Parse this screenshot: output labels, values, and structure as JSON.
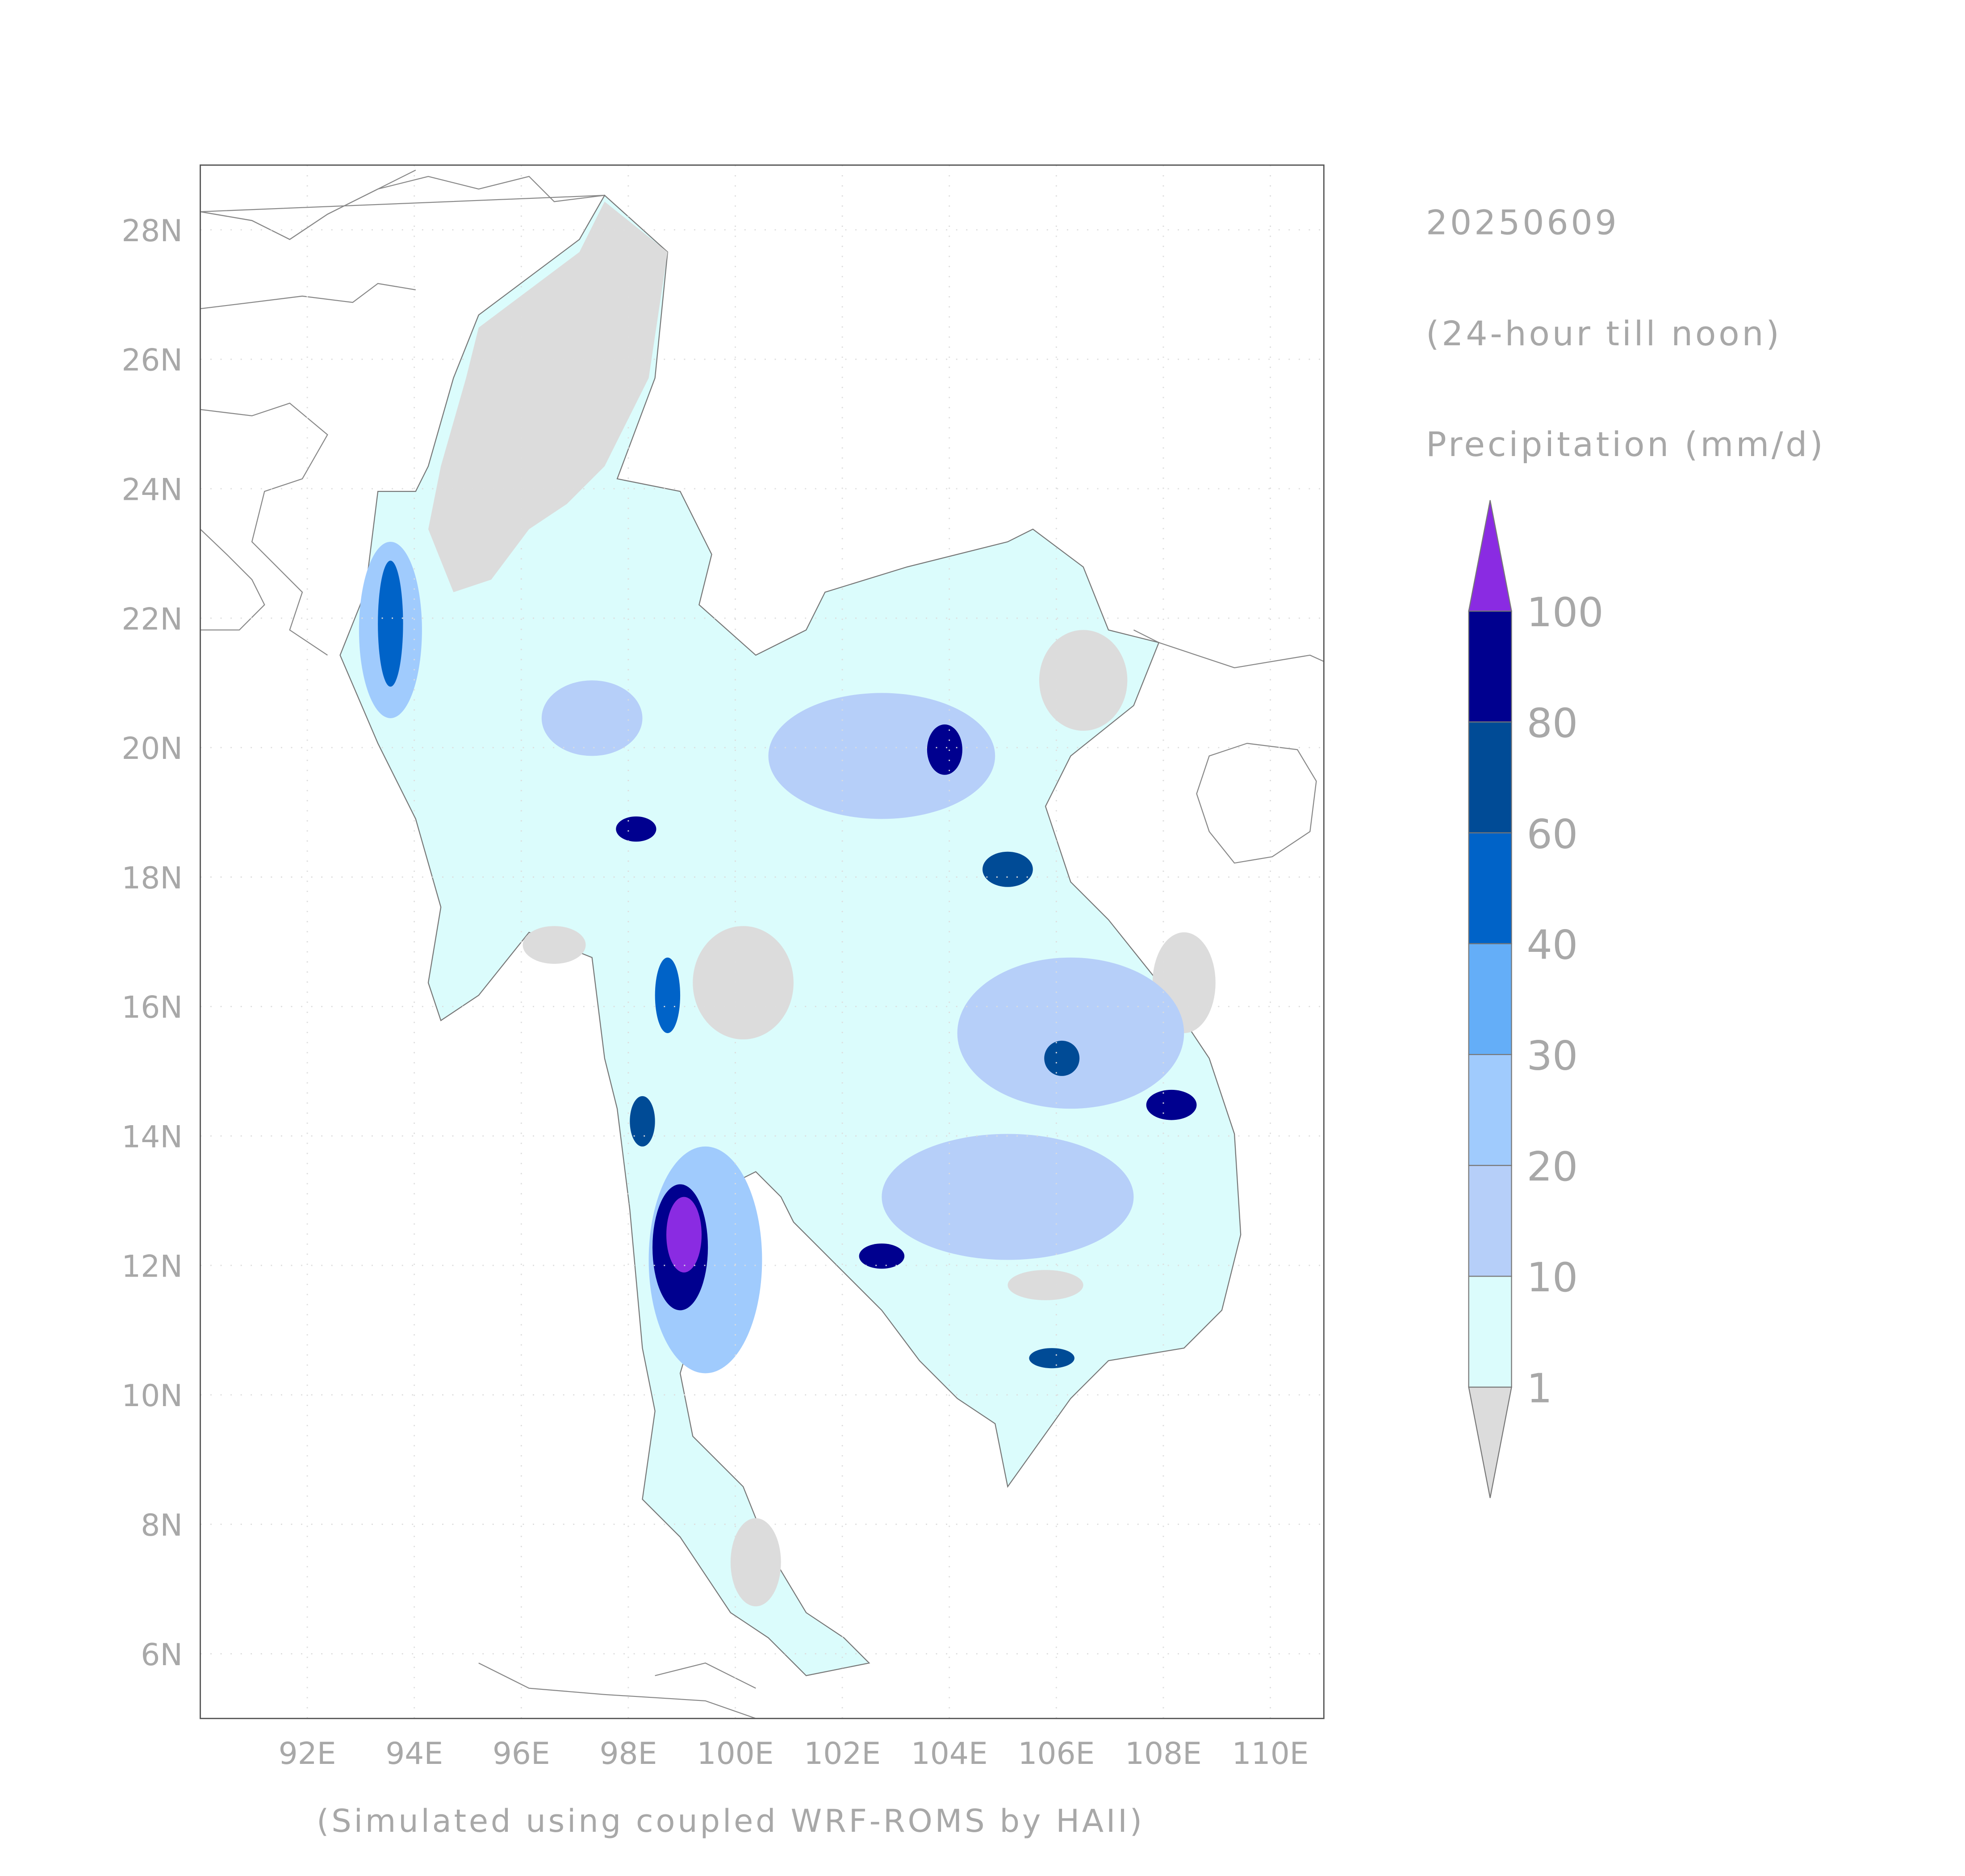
{
  "chart_data": {
    "type": "contour",
    "title": "20250609",
    "subtitle": "(24-hour till noon)",
    "colorbar_label": "Precipitation (mm/d)",
    "caption": "(Simulated using coupled WRF-ROMS by HAII)",
    "xlim": [
      90,
      111
    ],
    "ylim": [
      5,
      29
    ],
    "xticks": [
      {
        "value": 92,
        "label": "92E"
      },
      {
        "value": 94,
        "label": "94E"
      },
      {
        "value": 96,
        "label": "96E"
      },
      {
        "value": 98,
        "label": "98E"
      },
      {
        "value": 100,
        "label": "100E"
      },
      {
        "value": 102,
        "label": "102E"
      },
      {
        "value": 104,
        "label": "104E"
      },
      {
        "value": 106,
        "label": "106E"
      },
      {
        "value": 108,
        "label": "108E"
      },
      {
        "value": 110,
        "label": "110E"
      }
    ],
    "yticks": [
      {
        "value": 6,
        "label": "6N"
      },
      {
        "value": 8,
        "label": "8N"
      },
      {
        "value": 10,
        "label": "10N"
      },
      {
        "value": 12,
        "label": "12N"
      },
      {
        "value": 14,
        "label": "14N"
      },
      {
        "value": 16,
        "label": "16N"
      },
      {
        "value": 18,
        "label": "18N"
      },
      {
        "value": 20,
        "label": "20N"
      },
      {
        "value": 22,
        "label": "22N"
      },
      {
        "value": 24,
        "label": "24N"
      },
      {
        "value": 26,
        "label": "26N"
      },
      {
        "value": 28,
        "label": "28N"
      }
    ],
    "grid": true,
    "levels": [
      1,
      10,
      20,
      30,
      40,
      60,
      80,
      100
    ],
    "colors": [
      "#dcdcdc",
      "#dbfcfc",
      "#b6cff9",
      "#a0cbfd",
      "#64aef8",
      "#0063c8",
      "#004b96",
      "#00008f",
      "#8a2be2"
    ]
  }
}
